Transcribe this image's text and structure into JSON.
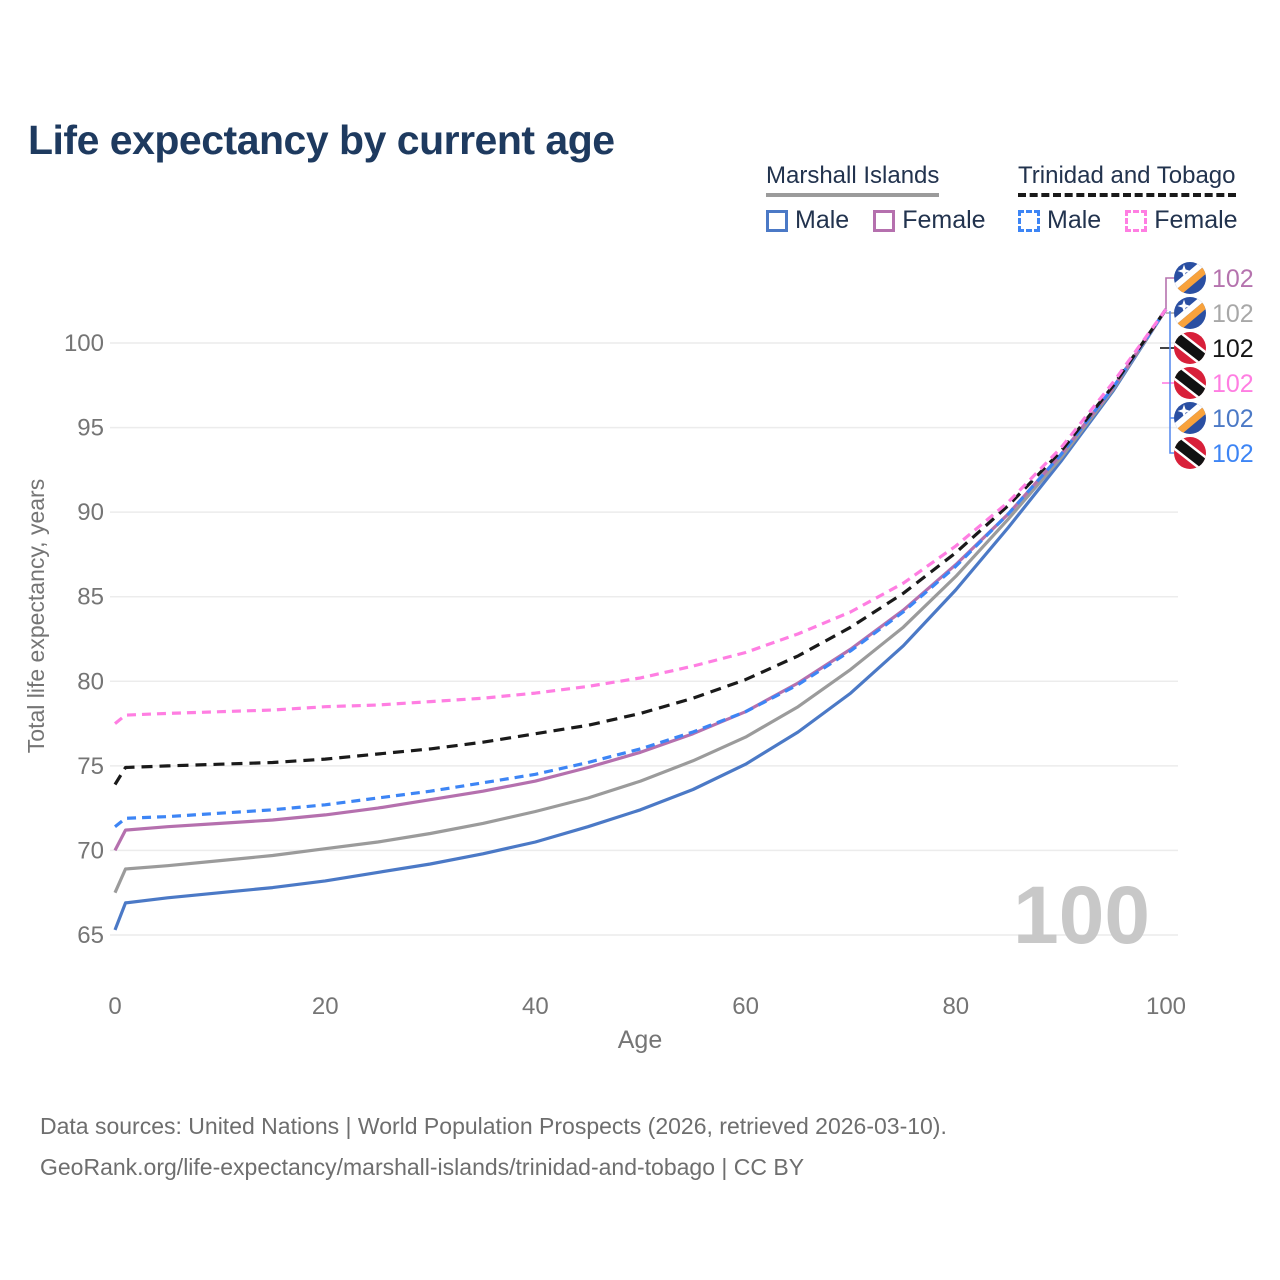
{
  "title": "Life expectancy by current age",
  "legend": {
    "groups": [
      {
        "label": "Marshall Islands",
        "underline_style": "solid",
        "underline_color": "#9b9b9b",
        "items": [
          {
            "label": "Male",
            "color": "#4b79c6",
            "dashed": false
          },
          {
            "label": "Female",
            "color": "#b570ae",
            "dashed": false
          }
        ]
      },
      {
        "label": "Trinidad and Tobago",
        "underline_style": "dashed",
        "underline_color": "#1a1a1a",
        "items": [
          {
            "label": "Male",
            "color": "#3d85f5",
            "dashed": true
          },
          {
            "label": "Female",
            "color": "#ff7ee2",
            "dashed": true
          }
        ]
      }
    ]
  },
  "chart_data": {
    "type": "line",
    "title": "Life expectancy by current age",
    "xlabel": "Age",
    "ylabel": "Total life expectancy, years",
    "xlim": [
      0,
      100
    ],
    "ylim": [
      63.5,
      103
    ],
    "x_ticks": [
      0,
      20,
      40,
      60,
      80,
      100
    ],
    "y_ticks": [
      65,
      70,
      75,
      80,
      85,
      90,
      95,
      100
    ],
    "grid": "horizontal",
    "legend_position": "top-right",
    "hover_age_label": "100",
    "x": [
      0,
      1,
      5,
      10,
      15,
      20,
      25,
      30,
      35,
      40,
      45,
      50,
      55,
      60,
      65,
      70,
      75,
      80,
      85,
      90,
      95,
      100
    ],
    "series": [
      {
        "id": "marshall-male",
        "name": "Marshall Islands — Male",
        "color": "#4b79c6",
        "dashed": false,
        "values": [
          65.3,
          66.9,
          67.2,
          67.5,
          67.8,
          68.2,
          68.7,
          69.2,
          69.8,
          70.5,
          71.4,
          72.4,
          73.6,
          75.1,
          77.0,
          79.3,
          82.1,
          85.4,
          89.1,
          93.0,
          97.2,
          102
        ]
      },
      {
        "id": "marshall-both",
        "name": "Marshall Islands — Both sexes",
        "color": "#9b9b9b",
        "dashed": false,
        "values": [
          67.5,
          68.9,
          69.1,
          69.4,
          69.7,
          70.1,
          70.5,
          71.0,
          71.6,
          72.3,
          73.1,
          74.1,
          75.3,
          76.7,
          78.5,
          80.7,
          83.2,
          86.2,
          89.6,
          93.2,
          97.3,
          102
        ]
      },
      {
        "id": "marshall-female",
        "name": "Marshall Islands — Female",
        "color": "#b570ae",
        "dashed": false,
        "values": [
          70.0,
          71.2,
          71.4,
          71.6,
          71.8,
          72.1,
          72.5,
          73.0,
          73.5,
          74.1,
          74.9,
          75.8,
          76.9,
          78.2,
          79.9,
          81.9,
          84.2,
          86.9,
          89.9,
          93.4,
          97.4,
          102
        ]
      },
      {
        "id": "trinidad-male",
        "name": "Trinidad and Tobago — Male",
        "color": "#3d85f5",
        "dashed": true,
        "values": [
          71.4,
          71.9,
          72.0,
          72.2,
          72.4,
          72.7,
          73.1,
          73.5,
          74.0,
          74.5,
          75.2,
          76.0,
          77.0,
          78.2,
          79.8,
          81.8,
          84.1,
          86.8,
          89.9,
          93.4,
          97.4,
          102
        ]
      },
      {
        "id": "trinidad-both",
        "name": "Trinidad and Tobago — Both sexes",
        "color": "#1a1a1a",
        "dashed": true,
        "values": [
          73.9,
          74.9,
          75.0,
          75.1,
          75.2,
          75.4,
          75.7,
          76.0,
          76.4,
          76.9,
          77.4,
          78.1,
          79.0,
          80.1,
          81.5,
          83.2,
          85.2,
          87.6,
          90.4,
          93.6,
          97.5,
          102
        ]
      },
      {
        "id": "trinidad-female",
        "name": "Trinidad and Tobago — Female",
        "color": "#ff7ee2",
        "dashed": true,
        "values": [
          77.5,
          78.0,
          78.1,
          78.2,
          78.3,
          78.5,
          78.6,
          78.8,
          79.0,
          79.3,
          79.7,
          80.2,
          80.9,
          81.7,
          82.8,
          84.1,
          85.8,
          88.0,
          90.6,
          93.8,
          97.7,
          102
        ]
      }
    ],
    "end_labels": [
      {
        "value": "102",
        "color": "#b573ae",
        "flag": "mh",
        "series": "marshall-female"
      },
      {
        "value": "102",
        "color": "#a8a8a8",
        "flag": "mh",
        "series": "marshall-both"
      },
      {
        "value": "102",
        "color": "#161616",
        "flag": "tt",
        "series": "trinidad-both"
      },
      {
        "value": "102",
        "color": "#ff7ee2",
        "flag": "tt",
        "series": "trinidad-female"
      },
      {
        "value": "102",
        "color": "#4b79c6",
        "flag": "mh",
        "series": "marshall-male"
      },
      {
        "value": "102",
        "color": "#3d85f5",
        "flag": "tt",
        "series": "trinidad-male"
      }
    ]
  },
  "footer": {
    "line1": "Data sources: United Nations | World Population Prospects (2026, retrieved 2026-03-10).",
    "line2": "GeoRank.org/life-expectancy/marshall-islands/trinidad-and-tobago | CC BY"
  }
}
